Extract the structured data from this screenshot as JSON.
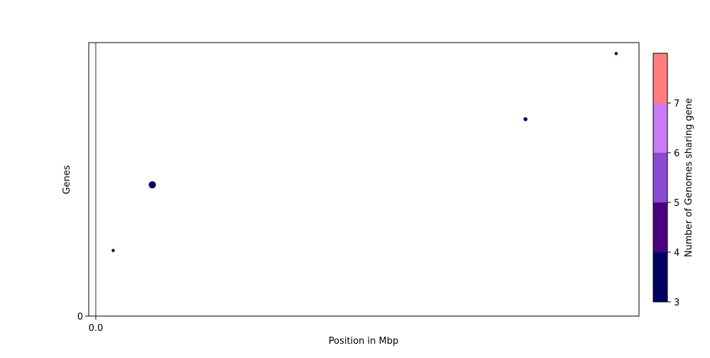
{
  "chart_data": {
    "type": "scatter",
    "title": "",
    "xlabel": "Position in Mbp",
    "ylabel": "Genes",
    "x_ticks": [
      {
        "value": 0.0,
        "label": "0.0"
      }
    ],
    "y_ticks": [
      {
        "value": 0,
        "label": "0"
      }
    ],
    "xlim": [
      -0.013,
      1.0
    ],
    "ylim": [
      0,
      1.0
    ],
    "vertical_line_x": 0.0,
    "points": [
      {
        "x": 0.032,
        "y": 0.24,
        "size": 2,
        "genomes": 3
      },
      {
        "x": 0.104,
        "y": 0.48,
        "size": 10,
        "genomes": 3
      },
      {
        "x": 0.791,
        "y": 0.72,
        "size": 3,
        "genomes": 3
      },
      {
        "x": 0.958,
        "y": 0.96,
        "size": 2,
        "genomes": 3
      }
    ],
    "colorbar": {
      "label": "Number of Genomes sharing gene",
      "range": [
        3,
        8
      ],
      "tick_labels": [
        "3",
        "4",
        "5",
        "6",
        "7"
      ],
      "colors": [
        "#000060",
        "#4b0082",
        "#8a4bd2",
        "#c77cf5",
        "#ff7f7f"
      ]
    }
  }
}
